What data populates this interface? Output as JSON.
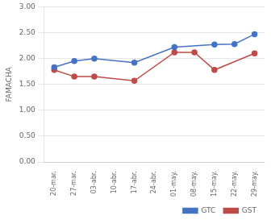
{
  "chart_data": {
    "type": "line",
    "categories": [
      "20-mar.",
      "27-mar.",
      "03-abr.",
      "10-abr.",
      "17-abr.",
      "24-abr.",
      "01-may.",
      "08-may.",
      "15-may.",
      "22-may.",
      "29-may."
    ],
    "series": [
      {
        "name": "GTC",
        "color": "#4472C4",
        "marker": "circle",
        "values": [
          1.83,
          1.95,
          2.0,
          null,
          1.92,
          null,
          2.22,
          null,
          2.27,
          2.28,
          2.47
        ]
      },
      {
        "name": "GST",
        "color": "#BE4B48",
        "marker": "circle",
        "values": [
          1.78,
          1.65,
          1.65,
          null,
          1.57,
          null,
          2.12,
          2.12,
          1.78,
          null,
          2.1
        ]
      }
    ],
    "ylabel": "FAMACHA",
    "ylim": [
      0.0,
      3.0
    ],
    "yticks": [
      {
        "value": 0.0,
        "label": "0.00"
      },
      {
        "value": 0.5,
        "label": "0.50"
      },
      {
        "value": 1.0,
        "label": "1.00"
      },
      {
        "value": 1.5,
        "label": "1.50"
      },
      {
        "value": 2.0,
        "label": "2.00"
      },
      {
        "value": 2.5,
        "label": "2.50"
      },
      {
        "value": 3.0,
        "label": "3.00"
      }
    ],
    "grid": true,
    "legend": "lower right"
  }
}
